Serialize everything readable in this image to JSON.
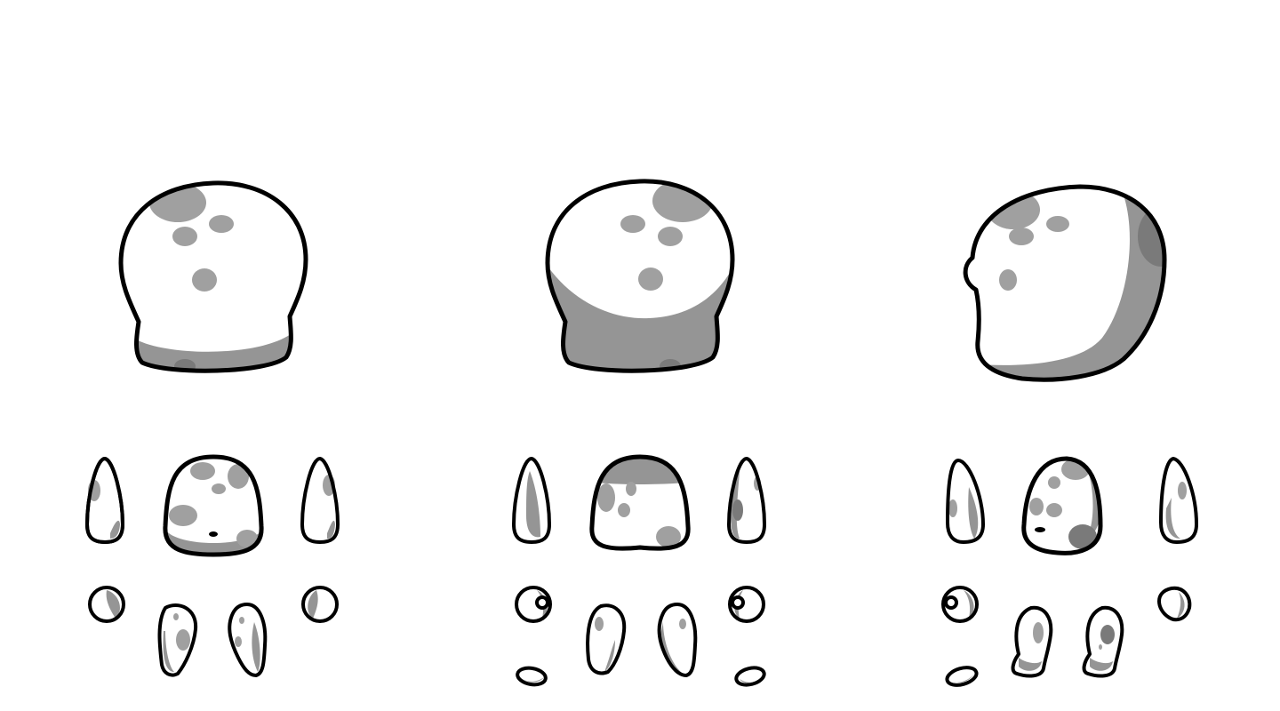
{
  "sprite_sheet": {
    "background_color": "#ffffff",
    "palette": {
      "body": "#ffffff",
      "spot": "#a0a0a0",
      "shade": "#959595",
      "dark_spot": "#7a7a7a",
      "outline": "#000000"
    },
    "views": [
      {
        "view": "front",
        "parts": [
          "head",
          "arm-left",
          "torso",
          "arm-right",
          "hand-left",
          "leg-left",
          "leg-right",
          "hand-right"
        ]
      },
      {
        "view": "back",
        "parts": [
          "head",
          "arm-left",
          "torso",
          "arm-right",
          "hand-left",
          "leg-left",
          "leg-right",
          "hand-right",
          "foot-left",
          "foot-right"
        ]
      },
      {
        "view": "side",
        "parts": [
          "head",
          "arm-left",
          "torso",
          "arm-right",
          "hand-left",
          "leg-left",
          "leg-right",
          "hand-right",
          "foot-left"
        ]
      }
    ]
  }
}
